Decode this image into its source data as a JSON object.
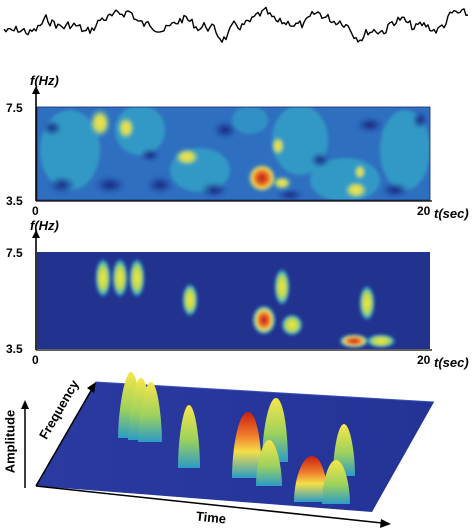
{
  "panel_spectrogram": {
    "y_axis_label": "f(Hz)",
    "y_tick_top": "7.5",
    "y_tick_bottom": "3.5",
    "x_tick_left": "0",
    "x_tick_right": "20",
    "x_axis_label": "t(sec)"
  },
  "panel_model": {
    "y_axis_label": "f(Hz)",
    "y_tick_top": "7.5",
    "y_tick_bottom": "3.5",
    "x_tick_left": "0",
    "x_tick_right": "20",
    "x_axis_label": "t(sec)"
  },
  "panel_3d": {
    "amplitude_label": "Amplitude",
    "frequency_label": "Frequency",
    "time_label": "Time"
  },
  "colors": {
    "low": "#1f2f8c",
    "mid": "#2aa7c9",
    "high": "#f4e04a",
    "peak": "#d81e12"
  }
}
